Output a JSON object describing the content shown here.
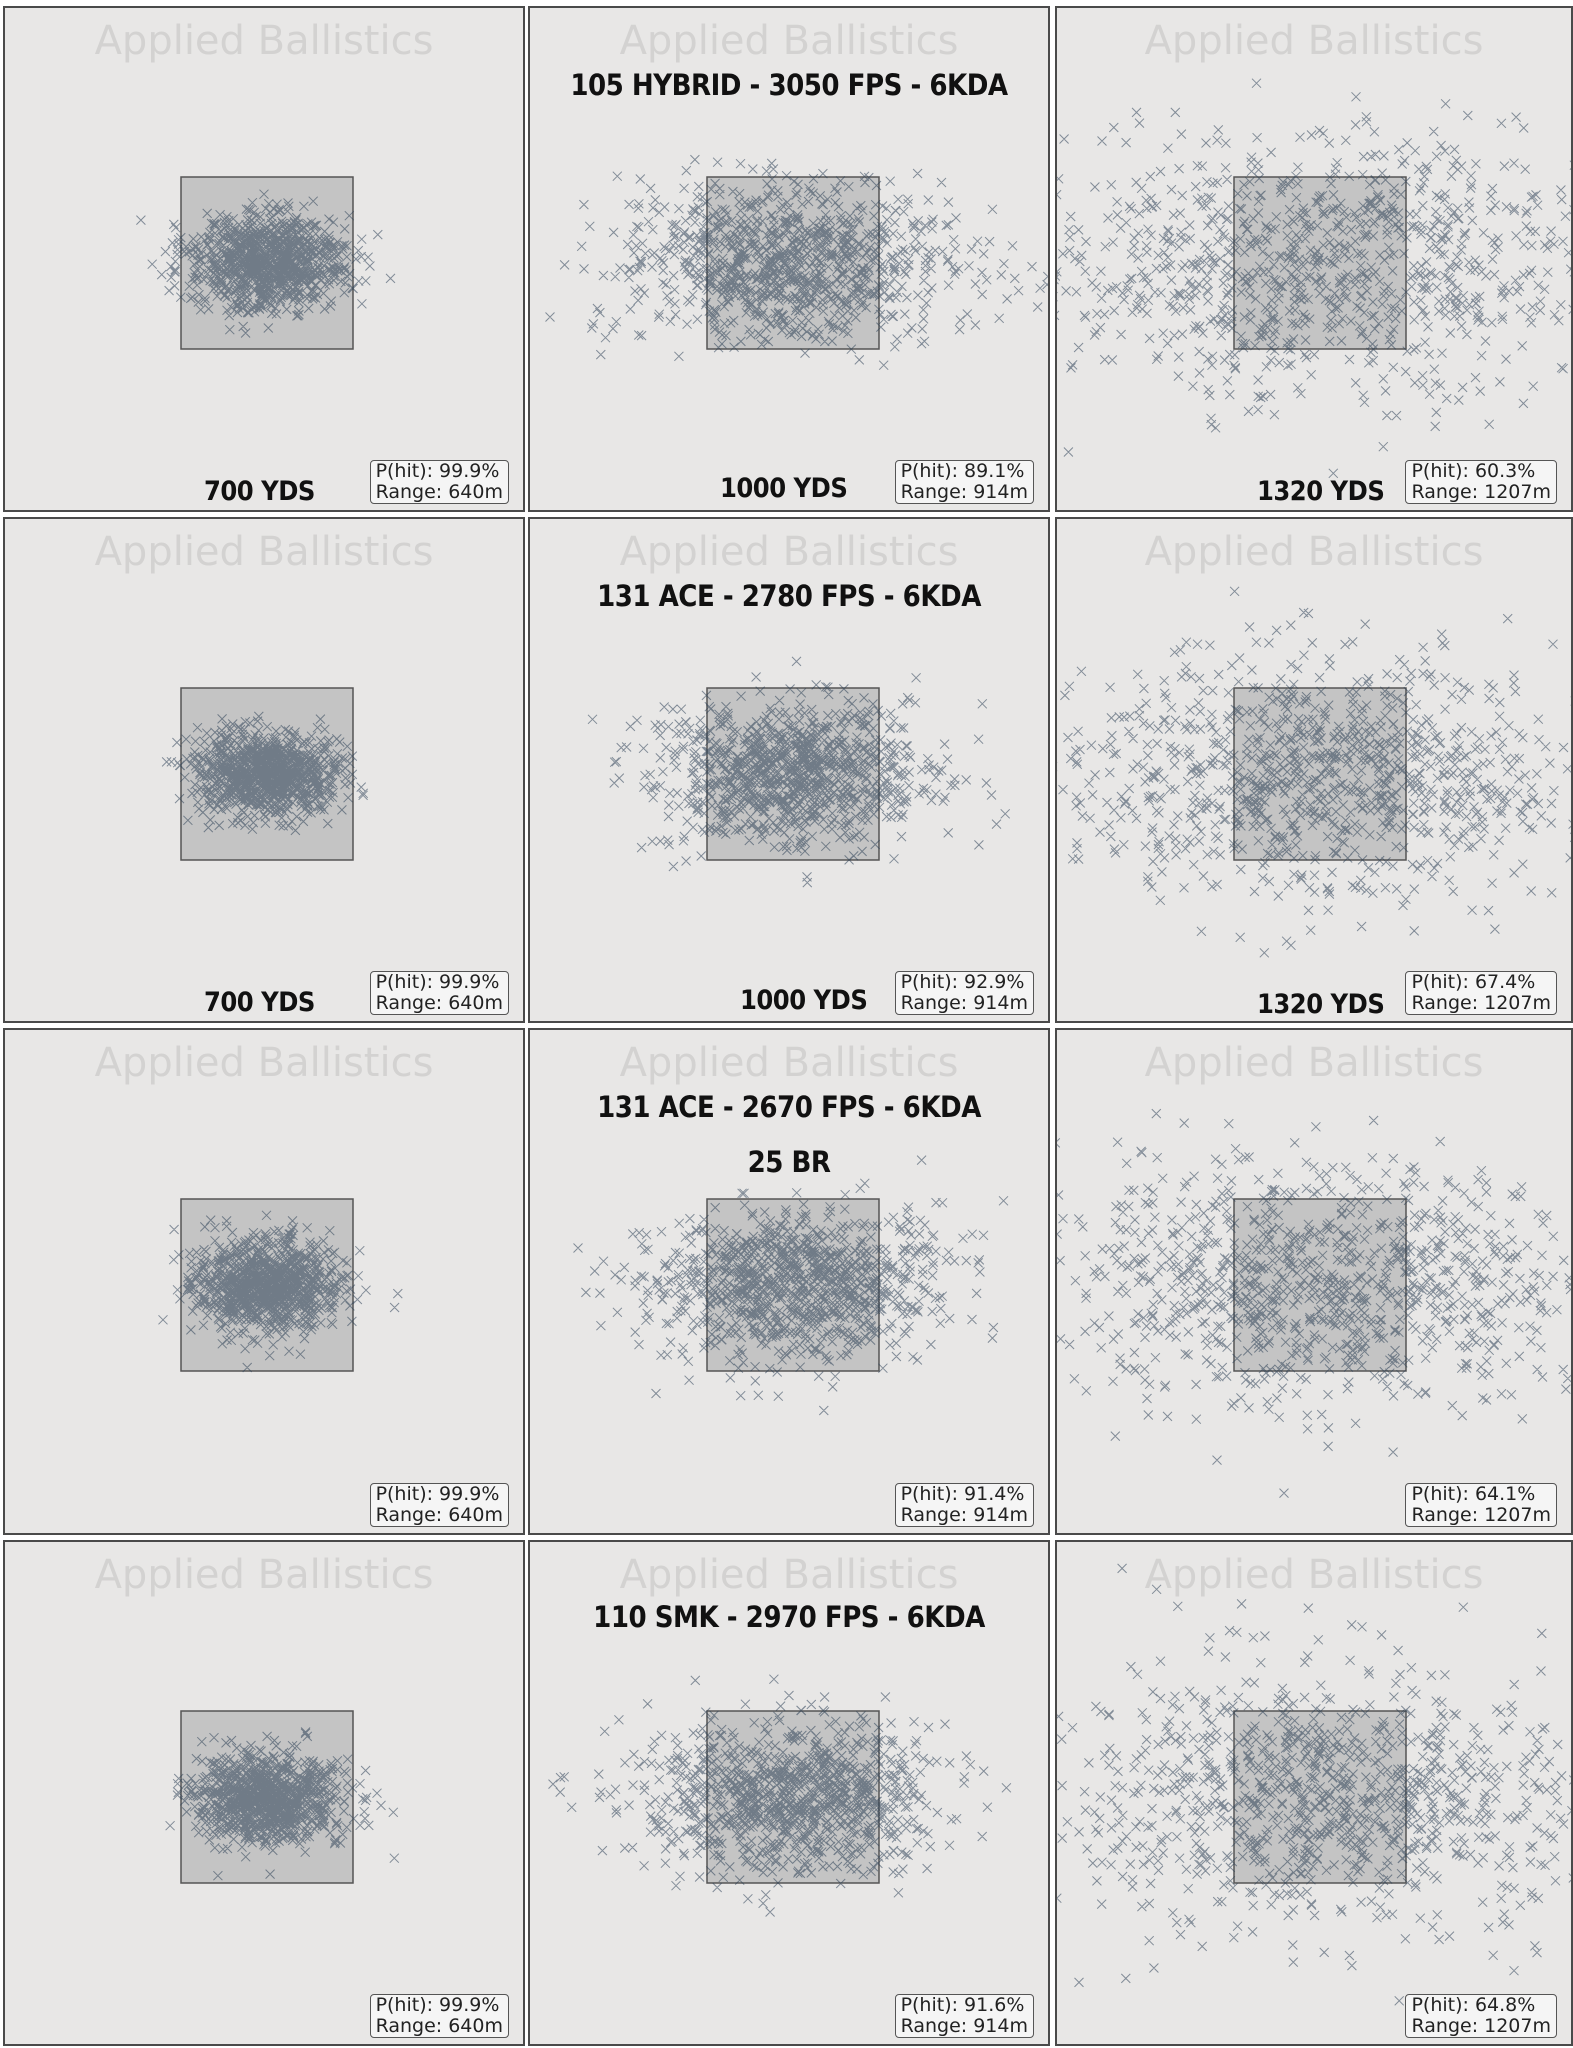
{
  "watermark": "Applied Ballistics",
  "headings": [
    "105 HYBRID - 3050 FPS - 6KDA",
    "131 ACE - 2780 FPS - 6KDA",
    "131 ACE - 2670 FPS - 6KDA",
    "25 BR",
    "110 SMK - 2970 FPS - 6KDA"
  ],
  "distance_labels": [
    "700 YDS",
    "1000 YDS",
    "1320 YDS"
  ],
  "colors": {
    "panel_background": "#e8e7e6",
    "target_fill": "#c4c4c4",
    "marker": "#2b3f55",
    "watermark": "#d3d2d1"
  },
  "chart_data": [
    {
      "type": "scatter",
      "row": 1,
      "col": 1,
      "marker": "x",
      "points": 1000,
      "target": "square",
      "distance_label": "700 YDS",
      "p_hit": "P(hit): 99.9%",
      "range": "Range: 640m",
      "spread": [
        0.45,
        0.27
      ]
    },
    {
      "type": "scatter",
      "row": 1,
      "col": 2,
      "marker": "x",
      "points": 1000,
      "target": "square",
      "heading": "105 HYBRID - 3050 FPS - 6KDA",
      "distance_label": "1000 YDS",
      "p_hit": "P(hit): 89.1%",
      "range": "Range: 914m",
      "spread": [
        1.0,
        0.45
      ]
    },
    {
      "type": "scatter",
      "row": 1,
      "col": 3,
      "marker": "x",
      "points": 1000,
      "target": "square",
      "distance_label": "1320 YDS",
      "p_hit": "P(hit): 60.3%",
      "range": "Range: 1207m",
      "spread": [
        1.7,
        0.75
      ]
    },
    {
      "type": "scatter",
      "row": 2,
      "col": 1,
      "marker": "x",
      "points": 1000,
      "target": "square",
      "distance_label": "700 YDS",
      "p_hit": "P(hit): 99.9%",
      "range": "Range: 640m",
      "spread": [
        0.4,
        0.24
      ]
    },
    {
      "type": "scatter",
      "row": 2,
      "col": 2,
      "marker": "x",
      "points": 1000,
      "target": "square",
      "heading": "131 ACE - 2780 FPS - 6KDA",
      "distance_label": "1000 YDS",
      "p_hit": "P(hit): 92.9%",
      "range": "Range: 914m",
      "spread": [
        0.78,
        0.42
      ]
    },
    {
      "type": "scatter",
      "row": 2,
      "col": 3,
      "marker": "x",
      "points": 1000,
      "target": "square",
      "distance_label": "1320 YDS",
      "p_hit": "P(hit): 67.4%",
      "range": "Range: 1207m",
      "spread": [
        1.45,
        0.7
      ]
    },
    {
      "type": "scatter",
      "row": 3,
      "col": 1,
      "marker": "x",
      "points": 1000,
      "target": "square",
      "p_hit": "P(hit): 99.9%",
      "range": "Range: 640m",
      "spread": [
        0.42,
        0.26
      ]
    },
    {
      "type": "scatter",
      "row": 3,
      "col": 2,
      "marker": "x",
      "points": 1000,
      "target": "square",
      "heading": "131 ACE - 2670 FPS - 6KDA",
      "subheading": "25 BR",
      "p_hit": "P(hit): 91.4%",
      "range": "Range: 914m",
      "spread": [
        0.85,
        0.43
      ]
    },
    {
      "type": "scatter",
      "row": 3,
      "col": 3,
      "marker": "x",
      "points": 1000,
      "target": "square",
      "p_hit": "P(hit): 64.1%",
      "range": "Range: 1207m",
      "spread": [
        1.55,
        0.72
      ]
    },
    {
      "type": "scatter",
      "row": 4,
      "col": 1,
      "marker": "x",
      "points": 1000,
      "target": "square",
      "p_hit": "P(hit): 99.9%",
      "range": "Range: 640m",
      "spread": [
        0.43,
        0.25
      ]
    },
    {
      "type": "scatter",
      "row": 4,
      "col": 2,
      "marker": "x",
      "points": 1000,
      "target": "square",
      "heading": "110 SMK - 2970 FPS - 6KDA",
      "p_hit": "P(hit): 91.6%",
      "range": "Range: 914m",
      "spread": [
        0.85,
        0.43
      ]
    },
    {
      "type": "scatter",
      "row": 4,
      "col": 3,
      "marker": "x",
      "points": 1000,
      "target": "square",
      "p_hit": "P(hit): 64.8%",
      "range": "Range: 1207m",
      "spread": [
        1.5,
        0.72
      ]
    }
  ]
}
